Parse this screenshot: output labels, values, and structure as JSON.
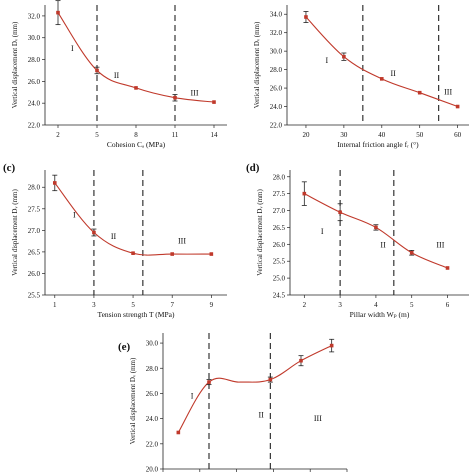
{
  "chart_data": [
    {
      "id": "a",
      "panel_tag": "",
      "type": "line",
      "xlabel": "Cohesion Cₐ (MPa)",
      "ylabel": "Vertical displacement Dᵥ (mm)",
      "x_ticks": [
        "2",
        "5",
        "8",
        "11",
        "14"
      ],
      "y_ticks": [
        "22.0",
        "24.0",
        "26.0",
        "28.0",
        "30.0",
        "32.0"
      ],
      "xlim": [
        1,
        15
      ],
      "ylim": [
        22.0,
        33.0
      ],
      "x": [
        2,
        5,
        8,
        11,
        14
      ],
      "y": [
        32.3,
        27.0,
        25.4,
        24.5,
        24.1
      ],
      "error": [
        1.1,
        0.3,
        0.0,
        0.3,
        0.0
      ],
      "dividers": [
        5,
        11
      ],
      "regions": [
        {
          "label": "I",
          "x": 3.1,
          "y": 28.8
        },
        {
          "label": "II",
          "x": 6.5,
          "y": 26.3
        },
        {
          "label": "III",
          "x": 12.5,
          "y": 24.7
        }
      ],
      "color": "#c0392b"
    },
    {
      "id": "b",
      "panel_tag": "",
      "type": "line",
      "xlabel": "Internal friction angle fᵣ (°)",
      "ylabel": "Vertical displacement Dᵥ (mm)",
      "x_ticks": [
        "20",
        "30",
        "40",
        "50",
        "60"
      ],
      "y_ticks": [
        "22.0",
        "24.0",
        "26.0",
        "28.0",
        "30.0",
        "32.0",
        "34.0"
      ],
      "xlim": [
        15,
        63
      ],
      "ylim": [
        22.0,
        35.0
      ],
      "x": [
        20,
        30,
        40,
        50,
        60
      ],
      "y": [
        33.7,
        29.4,
        27.0,
        25.5,
        24.0
      ],
      "error": [
        0.6,
        0.4,
        0.0,
        0.0,
        0.0
      ],
      "dividers": [
        35,
        55
      ],
      "regions": [
        {
          "label": "I",
          "x": 25.5,
          "y": 28.7
        },
        {
          "label": "II",
          "x": 43,
          "y": 27.3
        },
        {
          "label": "III",
          "x": 57.5,
          "y": 25.3
        }
      ],
      "color": "#c0392b"
    },
    {
      "id": "c",
      "panel_tag": "(c)",
      "type": "line",
      "xlabel": "Tension strength T (MPa)",
      "ylabel": "Vertical displacement Dᵥ (mm)",
      "x_ticks": [
        "1",
        "3",
        "5",
        "7",
        "9"
      ],
      "y_ticks": [
        "25.5",
        "26.0",
        "26.5",
        "27.0",
        "27.5",
        "28.0"
      ],
      "xlim": [
        0.5,
        9.8
      ],
      "ylim": [
        25.5,
        28.4
      ],
      "x": [
        1,
        3,
        5,
        7,
        9
      ],
      "y": [
        28.1,
        26.95,
        26.47,
        26.45,
        26.45
      ],
      "error": [
        0.18,
        0.08,
        0.0,
        0.0,
        0.0
      ],
      "dividers": [
        3,
        5.5
      ],
      "regions": [
        {
          "label": "I",
          "x": 2.0,
          "y": 27.3
        },
        {
          "label": "II",
          "x": 4.0,
          "y": 26.8
        },
        {
          "label": "III",
          "x": 7.5,
          "y": 26.7
        }
      ],
      "color": "#c0392b"
    },
    {
      "id": "d",
      "panel_tag": "(d)",
      "type": "line",
      "xlabel": "Pillar width Wₚ (m)",
      "ylabel": "Vertical displacement Dᵥ (mm)",
      "x_ticks": [
        "2",
        "3",
        "4",
        "5",
        "6"
      ],
      "y_ticks": [
        "24.5",
        "25.0",
        "25.5",
        "26.0",
        "26.5",
        "27.0",
        "27.5",
        "28.0"
      ],
      "xlim": [
        1.6,
        6.6
      ],
      "ylim": [
        24.5,
        28.2
      ],
      "x": [
        2,
        3,
        4,
        5,
        6
      ],
      "y": [
        27.5,
        26.95,
        26.5,
        25.75,
        25.3
      ],
      "error": [
        0.35,
        0.25,
        0.08,
        0.07,
        0.0
      ],
      "dividers": [
        3,
        4.5
      ],
      "regions": [
        {
          "label": "I",
          "x": 2.5,
          "y": 26.3
        },
        {
          "label": "II",
          "x": 4.2,
          "y": 25.9
        },
        {
          "label": "III",
          "x": 5.8,
          "y": 25.9
        }
      ],
      "color": "#c0392b"
    },
    {
      "id": "e",
      "panel_tag": "(e)",
      "type": "line",
      "xlabel": "",
      "ylabel": "Vertical displacement Dᵥ (mm)",
      "x_ticks": [
        "",
        "",
        "",
        "",
        "",
        ""
      ],
      "y_ticks": [
        "20.0",
        "22.0",
        "24.0",
        "26.0",
        "28.0",
        "30.0"
      ],
      "xlim": [
        0,
        6
      ],
      "ylim": [
        20.0,
        30.8
      ],
      "x": [
        0.5,
        1.5,
        2.5,
        3.5,
        4.5,
        5.5
      ],
      "y": [
        22.9,
        26.9,
        26.9,
        27.1,
        28.6,
        29.8
      ],
      "hide_points": [
        false,
        false,
        true,
        false,
        false,
        false
      ],
      "error": [
        0.0,
        0.2,
        0.0,
        0.2,
        0.4,
        0.5
      ],
      "dividers": [
        1.5,
        3.5
      ],
      "regions": [
        {
          "label": "I",
          "x": 0.95,
          "y": 25.6
        },
        {
          "label": "II",
          "x": 3.2,
          "y": 24.1
        },
        {
          "label": "III",
          "x": 5.05,
          "y": 23.8
        }
      ],
      "color": "#c0392b"
    }
  ]
}
